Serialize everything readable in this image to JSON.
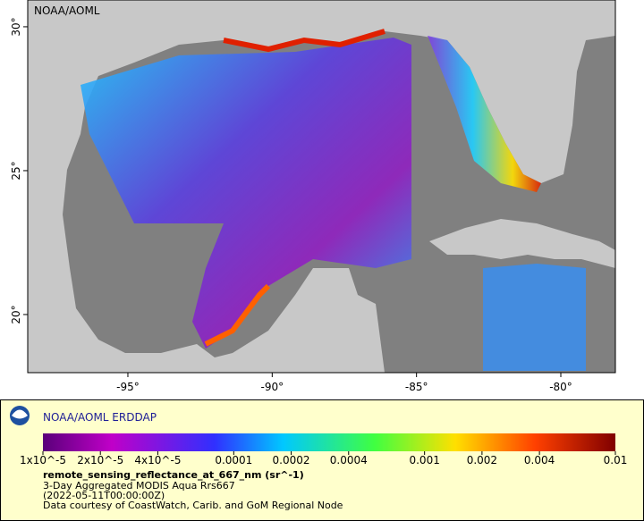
{
  "map": {
    "watermark": "NOAA/AOML",
    "xlim": [
      -98.47,
      -78.11
    ],
    "ylim": [
      17.98,
      30.93
    ],
    "xticks": [
      {
        "value": -95,
        "label": "-95°"
      },
      {
        "value": -90,
        "label": "-90°"
      },
      {
        "value": -85,
        "label": "-85°"
      },
      {
        "value": -80,
        "label": "-80°"
      }
    ],
    "yticks": [
      {
        "value": 20,
        "label": "20°"
      },
      {
        "value": 25,
        "label": "25°"
      },
      {
        "value": 30,
        "label": "30°"
      }
    ]
  },
  "legend": {
    "title": "NOAA/AOML ERDDAP",
    "colorbar": {
      "log_scale": true,
      "lim": [
        1e-05,
        0.01
      ],
      "ticks": [
        {
          "value": 1e-05,
          "label": "1x10^-5"
        },
        {
          "value": 2e-05,
          "label": "2x10^-5"
        },
        {
          "value": 4e-05,
          "label": "4x10^-5"
        },
        0.0001,
        0.0002,
        0.0004,
        0.001,
        0.002,
        0.004,
        0.01
      ]
    },
    "variable": "remote_sensing_reflectance_at_667_nm (sr^-1)",
    "dataset": "3-Day Aggregated MODIS Aqua Rrs667",
    "time": "(2022-05-11T00:00:00Z)",
    "credit": "Data courtesy of CoastWatch, Carib. and GoM Regional Node"
  }
}
